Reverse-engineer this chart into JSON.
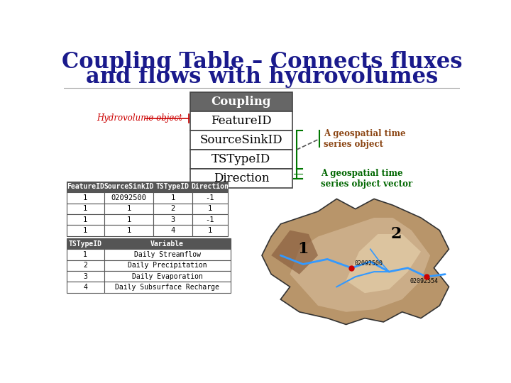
{
  "title_line1": "Coupling Table – Connects fluxes",
  "title_line2": "and flows with hydrovolumes",
  "title_color": "#1a1a8c",
  "title_fontsize": 22,
  "bg_color": "#ffffff",
  "coupling_box": {
    "header": "Coupling",
    "header_bg": "#666666",
    "header_fg": "#ffffff",
    "rows": [
      "FeatureID",
      "SourceSinkID",
      "TSTypeID",
      "Direction"
    ],
    "row_bg": "#ffffff",
    "row_fg": "#000000",
    "border_color": "#444444"
  },
  "hydrovolume_label": "Hydrovolume object",
  "hydrovolume_color": "#cc0000",
  "geo_label1": "A geospatial time\nseries object",
  "geo_label2": "A geospatial time\nseries object vector",
  "geo_color1": "#8B4513",
  "geo_color2": "#006600",
  "connector_color": "#007700",
  "table1_headers": [
    "FeatureID",
    "SourceSinkID",
    "TSTypeID",
    "Direction"
  ],
  "table1_data": [
    [
      "1",
      "02092500",
      "1",
      "-1"
    ],
    [
      "1",
      "1",
      "2",
      "1"
    ],
    [
      "1",
      "1",
      "3",
      "-1"
    ],
    [
      "1",
      "1",
      "4",
      "1"
    ]
  ],
  "table2_headers": [
    "TSTypeID",
    "Variable"
  ],
  "table2_data": [
    [
      "1",
      "Daily Streamflow"
    ],
    [
      "2",
      "Daily Precipitation"
    ],
    [
      "3",
      "Daily Evaporation"
    ],
    [
      "4",
      "Daily Subsurface Recharge"
    ]
  ],
  "table_header_bg": "#555555",
  "table_header_fg": "#ffffff",
  "table_row_bg": "#ffffff",
  "table_border": "#555555",
  "sep_line_color": "#aaaaaa",
  "map_bg": "#c8a86b",
  "river_color": "#3399ff",
  "dot_color": "#cc0000",
  "label1": "1",
  "label2": "2",
  "station1": "02092500",
  "station2": "02092554"
}
